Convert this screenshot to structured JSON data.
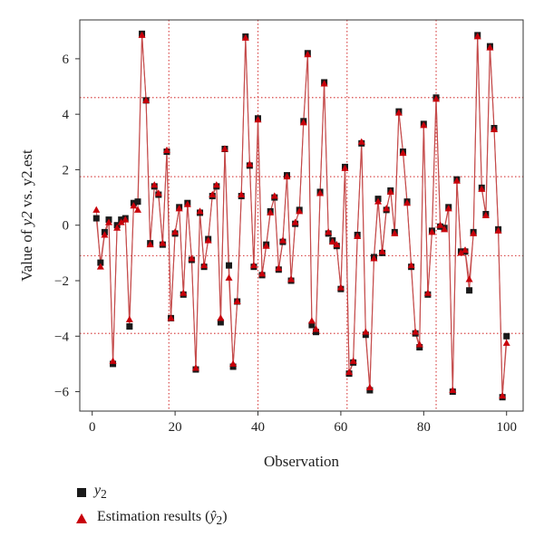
{
  "chart_data": {
    "type": "line",
    "xlabel": "Observation",
    "ylabel_parts": [
      "Value of ",
      "y2",
      " vs. ",
      "y2.est"
    ],
    "xlim": [
      -3,
      104
    ],
    "ylim": [
      -6.7,
      7.4
    ],
    "x_ticks": [
      0,
      20,
      40,
      60,
      80,
      100
    ],
    "y_ticks": [
      -6,
      -4,
      -2,
      0,
      2,
      4,
      6
    ],
    "tick_labels_x": [
      "0",
      "20",
      "40",
      "60",
      "80",
      "100"
    ],
    "tick_labels_y": [
      "−6",
      "−4",
      "−2",
      "0",
      "2",
      "4",
      "6"
    ],
    "reference_lines": {
      "vertical_x": [
        18.5,
        40,
        61.5,
        83
      ],
      "horizontal_y": [
        4.6,
        1.75,
        -1.1,
        -3.9
      ]
    },
    "grid": false,
    "legend_position": "bottom-left",
    "colors": {
      "y2": "#1a1a1a",
      "estimate": "#c8000a",
      "line": "#c44a4a",
      "reference": "#d94b4b"
    },
    "series": [
      {
        "name": "y2",
        "marker": "square",
        "values": [
          0.25,
          -1.35,
          -0.25,
          0.2,
          -5.0,
          0.0,
          0.2,
          0.25,
          -3.65,
          0.8,
          0.85,
          6.9,
          4.5,
          -0.65,
          1.4,
          1.1,
          -0.7,
          2.65,
          -3.35,
          -0.3,
          0.65,
          -2.5,
          0.8,
          -1.25,
          -5.2,
          0.45,
          -1.5,
          -0.5,
          1.05,
          1.4,
          -3.5,
          2.75,
          -1.45,
          -5.1,
          -2.75,
          1.05,
          6.8,
          2.15,
          -1.5,
          3.85,
          -1.8,
          -0.7,
          0.5,
          1.0,
          -1.6,
          -0.6,
          1.8,
          -2.0,
          0.05,
          0.55,
          3.75,
          6.2,
          -3.6,
          -3.85,
          1.2,
          5.15,
          -0.3,
          -0.55,
          -0.75,
          -2.3,
          2.1,
          -5.35,
          -4.95,
          -0.35,
          2.95,
          -3.95,
          -5.95,
          -1.15,
          0.95,
          -1.0,
          0.55,
          1.25,
          -0.25,
          4.1,
          2.65,
          0.85,
          -1.5,
          -3.9,
          -4.4,
          3.65,
          -2.5,
          -0.2,
          4.6,
          -0.05,
          -0.1,
          0.65,
          -6.0,
          1.65,
          -0.95,
          -0.95,
          -2.35,
          -0.25,
          6.85,
          1.35,
          0.4,
          6.45,
          3.5,
          -0.15,
          -6.2,
          -4.0
        ]
      },
      {
        "name": "estimate",
        "marker": "triangle",
        "values": [
          0.55,
          -1.5,
          -0.35,
          0.1,
          -4.9,
          -0.1,
          0.1,
          0.2,
          -3.4,
          0.7,
          0.55,
          6.85,
          4.5,
          -0.7,
          1.45,
          1.15,
          -0.65,
          2.7,
          -3.35,
          -0.25,
          0.6,
          -2.45,
          0.75,
          -1.2,
          -5.15,
          0.5,
          -1.45,
          -0.55,
          1.1,
          1.45,
          -3.35,
          2.75,
          -1.9,
          -5.0,
          -2.75,
          1.1,
          6.75,
          2.2,
          -1.45,
          3.8,
          -1.75,
          -0.75,
          0.45,
          1.05,
          -1.55,
          -0.55,
          1.75,
          -1.95,
          0.1,
          0.5,
          3.7,
          6.15,
          -3.45,
          -3.75,
          1.15,
          5.1,
          -0.25,
          -0.6,
          -0.7,
          -2.25,
          2.05,
          -5.3,
          -4.9,
          -0.4,
          3.0,
          -3.85,
          -5.85,
          -1.2,
          0.85,
          -0.95,
          0.6,
          1.2,
          -0.3,
          4.05,
          2.6,
          0.8,
          -1.45,
          -3.85,
          -4.3,
          3.6,
          -2.45,
          -0.25,
          4.55,
          0.0,
          -0.15,
          0.6,
          -5.95,
          1.6,
          -1.0,
          -0.9,
          -1.95,
          -0.3,
          6.8,
          1.3,
          0.35,
          6.4,
          3.45,
          -0.2,
          -6.15,
          -4.25
        ]
      }
    ]
  },
  "legend": {
    "items": [
      {
        "label_italic": "y",
        "label_sub": "2",
        "label_suffix": ""
      },
      {
        "label_text": "Estimation results (",
        "label_italic": "ŷ",
        "label_sub": "2",
        "label_suffix": ")"
      }
    ]
  }
}
